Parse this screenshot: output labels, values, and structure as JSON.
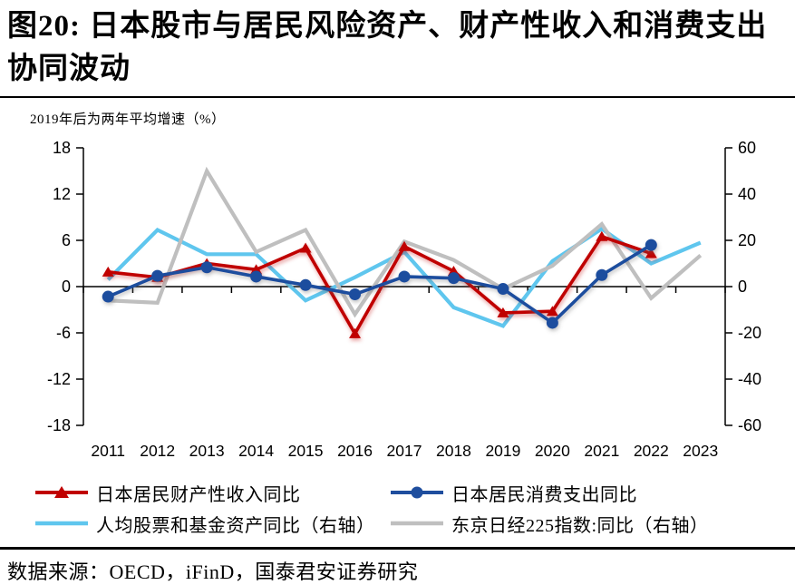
{
  "page": {
    "title": "图20:  日本股市与居民风险资产、财产性收入和消费支出协同波动",
    "source": "数据来源：OECD，iFinD，国泰君安证券研究"
  },
  "colors": {
    "red": "#C00000",
    "blue": "#1F4E9E",
    "light_blue": "#5FC6EE",
    "gray": "#BFBFBF",
    "axis": "#000000"
  },
  "chart_data": {
    "type": "line",
    "title": "图20: 日本股市与居民风险资产、财产性收入和消费支出协同波动",
    "note": "2019年后为两年平均增速（%）",
    "categories": [
      2011,
      2012,
      2013,
      2014,
      2015,
      2016,
      2017,
      2018,
      2019,
      2020,
      2021,
      2022,
      2023
    ],
    "series": [
      {
        "name": "日本居民财产性收入同比",
        "axis": "left",
        "color": "#C00000",
        "marker": "triangle",
        "values": [
          1.9,
          1.2,
          3.0,
          2.2,
          5.0,
          -6.1,
          5.2,
          2.0,
          -3.4,
          -3.2,
          6.5,
          4.3,
          null
        ]
      },
      {
        "name": "日本居民消费支出同比",
        "axis": "left",
        "color": "#1F4E9E",
        "marker": "circle",
        "values": [
          -1.3,
          1.4,
          2.5,
          1.3,
          0.2,
          -1.0,
          1.3,
          1.1,
          -0.3,
          -4.7,
          1.5,
          5.4,
          null
        ]
      },
      {
        "name": "人均股票和基金资产同比（右轴）",
        "axis": "right",
        "color": "#5FC6EE",
        "marker": "none",
        "values": [
          3,
          24.5,
          14,
          14,
          -6,
          4,
          15,
          -9,
          -17,
          11,
          25,
          10,
          19
        ]
      },
      {
        "name": "东京日经225指数:同比（右轴）",
        "axis": "right",
        "color": "#BFBFBF",
        "marker": "none",
        "values": [
          -6,
          -7,
          50,
          15,
          24.5,
          -12,
          19.5,
          11.5,
          -1,
          9,
          27,
          -5,
          13.5
        ]
      }
    ],
    "left_axis": {
      "min": -18,
      "max": 18,
      "ticks": [
        18,
        12,
        6,
        0,
        -6,
        -12,
        -18
      ]
    },
    "right_axis": {
      "min": -60,
      "max": 60,
      "ticks": [
        60,
        40,
        20,
        0,
        -20,
        -40,
        -60
      ]
    },
    "grid": false,
    "legend_position": "bottom"
  }
}
